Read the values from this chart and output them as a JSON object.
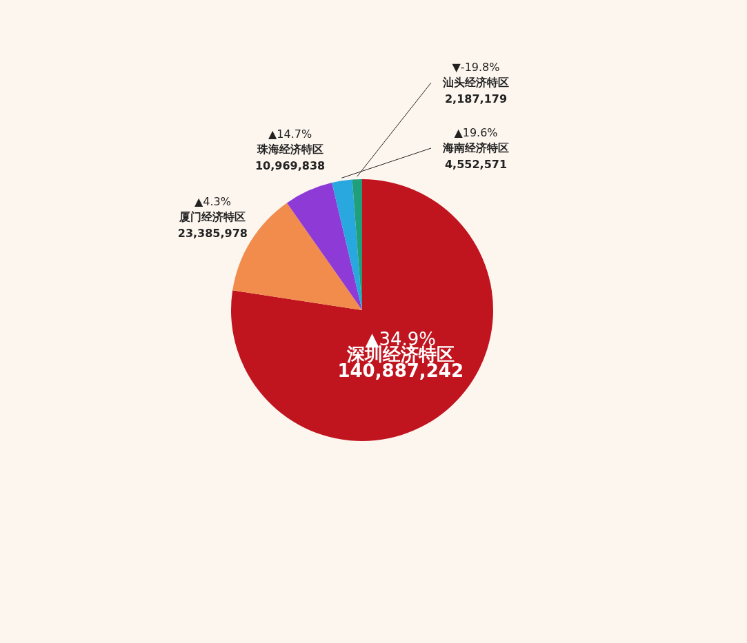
{
  "chart_data": {
    "type": "pie",
    "categories": [
      "深圳经济特区",
      "厦门经济特区",
      "珠海经济特区",
      "海南经济特区",
      "汕头经济特区"
    ],
    "values": [
      140887242,
      23385978,
      10969838,
      4552571,
      2187179
    ],
    "colors": [
      "#c0141f",
      "#f28c4c",
      "#8e3ad6",
      "#29a8e0",
      "#1fa07a"
    ],
    "value_labels": [
      "140,887,242",
      "23,385,978",
      "10,969,838",
      "4,552,571",
      "2,187,179"
    ],
    "annotations": [
      "▲34.9%",
      "▲4.3%",
      "▲14.7%",
      "▲19.6%",
      "▼-19.8%"
    ]
  }
}
